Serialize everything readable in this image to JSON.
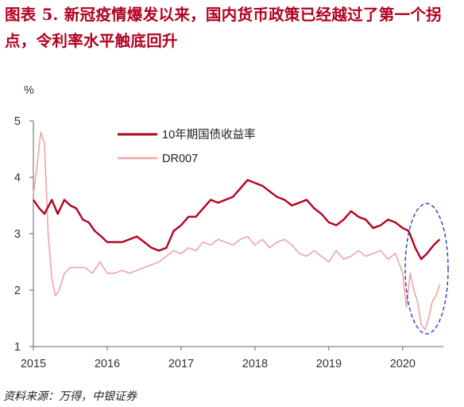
{
  "title": "图表 5. 新冠疫情爆发以来，国内货币政策已经越过了第一个拐点，令利率水平触底回升",
  "source": "资料来源：万得，中银证券",
  "colors": {
    "bond": "#b5001f",
    "dr007": "#f2a3a3",
    "highlight": "#1f3fcc"
  },
  "chart_data": {
    "type": "line",
    "ylabel": "%",
    "ylim": [
      1,
      5
    ],
    "y_ticks": [
      "1",
      "2",
      "3",
      "4",
      "5"
    ],
    "xlim": [
      2015.0,
      2020.55
    ],
    "x_ticks": [
      "2015",
      "2016",
      "2017",
      "2018",
      "2019",
      "2020"
    ],
    "grid": false,
    "legend": "top-center",
    "series": [
      {
        "name": "10年期国债收益率",
        "x": [
          2015.0,
          2015.08,
          2015.15,
          2015.25,
          2015.33,
          2015.42,
          2015.5,
          2015.58,
          2015.67,
          2015.75,
          2015.83,
          2015.92,
          2016.0,
          2016.1,
          2016.2,
          2016.3,
          2016.4,
          2016.5,
          2016.6,
          2016.7,
          2016.8,
          2016.9,
          2017.0,
          2017.1,
          2017.2,
          2017.3,
          2017.4,
          2017.5,
          2017.6,
          2017.7,
          2017.8,
          2017.9,
          2018.0,
          2018.1,
          2018.2,
          2018.3,
          2018.4,
          2018.5,
          2018.6,
          2018.7,
          2018.8,
          2018.9,
          2019.0,
          2019.1,
          2019.2,
          2019.3,
          2019.4,
          2019.5,
          2019.6,
          2019.7,
          2019.8,
          2019.9,
          2020.0,
          2020.08,
          2020.17,
          2020.25,
          2020.33,
          2020.42,
          2020.5
        ],
        "values": [
          3.6,
          3.45,
          3.35,
          3.6,
          3.35,
          3.6,
          3.5,
          3.45,
          3.25,
          3.2,
          3.05,
          2.95,
          2.85,
          2.85,
          2.85,
          2.9,
          2.95,
          2.85,
          2.75,
          2.7,
          2.75,
          3.05,
          3.15,
          3.3,
          3.3,
          3.45,
          3.6,
          3.55,
          3.6,
          3.65,
          3.8,
          3.95,
          3.9,
          3.85,
          3.75,
          3.65,
          3.6,
          3.5,
          3.55,
          3.6,
          3.45,
          3.35,
          3.2,
          3.15,
          3.25,
          3.4,
          3.3,
          3.25,
          3.1,
          3.15,
          3.25,
          3.2,
          3.1,
          3.05,
          2.75,
          2.55,
          2.65,
          2.8,
          2.9
        ]
      },
      {
        "name": "DR007",
        "x": [
          2015.0,
          2015.05,
          2015.1,
          2015.15,
          2015.2,
          2015.25,
          2015.3,
          2015.35,
          2015.42,
          2015.5,
          2015.6,
          2015.7,
          2015.8,
          2015.9,
          2016.0,
          2016.1,
          2016.2,
          2016.3,
          2016.4,
          2016.5,
          2016.6,
          2016.7,
          2016.8,
          2016.9,
          2017.0,
          2017.1,
          2017.2,
          2017.3,
          2017.4,
          2017.5,
          2017.6,
          2017.7,
          2017.8,
          2017.9,
          2018.0,
          2018.1,
          2018.2,
          2018.3,
          2018.4,
          2018.5,
          2018.6,
          2018.7,
          2018.8,
          2018.9,
          2019.0,
          2019.1,
          2019.2,
          2019.3,
          2019.4,
          2019.5,
          2019.6,
          2019.7,
          2019.8,
          2019.9,
          2020.0,
          2020.05,
          2020.1,
          2020.15,
          2020.2,
          2020.25,
          2020.3,
          2020.35,
          2020.4,
          2020.45,
          2020.5
        ],
        "values": [
          3.7,
          4.2,
          4.8,
          4.6,
          3.0,
          2.2,
          1.9,
          2.0,
          2.3,
          2.4,
          2.4,
          2.4,
          2.3,
          2.5,
          2.3,
          2.3,
          2.35,
          2.3,
          2.35,
          2.4,
          2.45,
          2.5,
          2.6,
          2.7,
          2.65,
          2.75,
          2.7,
          2.85,
          2.8,
          2.9,
          2.85,
          2.8,
          2.9,
          2.95,
          2.8,
          2.9,
          2.75,
          2.85,
          2.9,
          2.8,
          2.65,
          2.6,
          2.7,
          2.6,
          2.5,
          2.7,
          2.55,
          2.6,
          2.7,
          2.6,
          2.65,
          2.7,
          2.55,
          2.65,
          2.3,
          1.7,
          2.3,
          2.0,
          1.8,
          1.4,
          1.3,
          1.5,
          1.8,
          1.9,
          2.1
        ]
      }
    ]
  }
}
